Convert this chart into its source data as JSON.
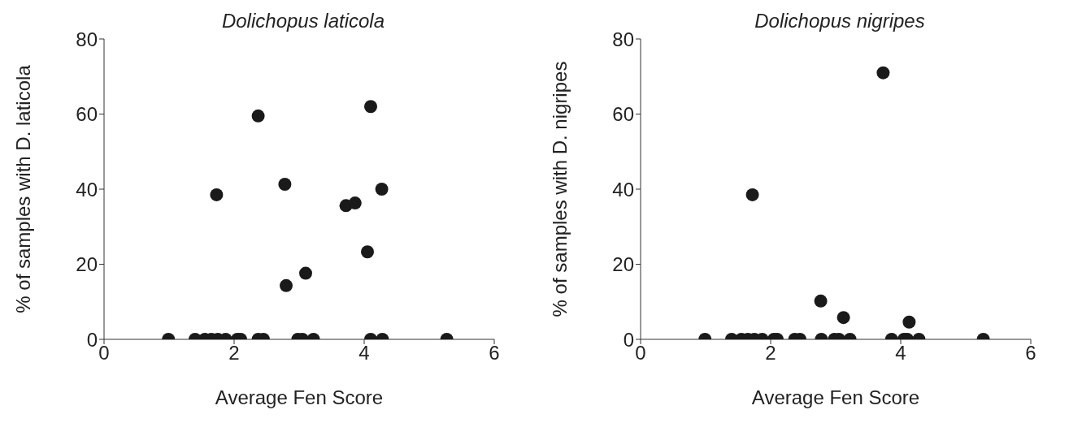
{
  "chart_data": [
    {
      "type": "scatter",
      "title": "Dolichopus laticola",
      "xlabel": "Average Fen Score",
      "ylabel": "% of samples with D. laticola",
      "xlim": [
        0,
        6
      ],
      "xticks": [
        0,
        2,
        4,
        6
      ],
      "ylim": [
        0,
        80
      ],
      "yticks": [
        0,
        20,
        40,
        60,
        80
      ],
      "grid": false,
      "legend": false,
      "marker": "circle",
      "x": [
        0.99,
        1.4,
        1.55,
        1.65,
        1.75,
        1.87,
        2.05,
        2.1,
        2.37,
        2.45,
        2.98,
        3.05,
        3.22,
        4.1,
        4.28,
        5.27,
        1.73,
        2.37,
        2.78,
        2.8,
        3.1,
        3.72,
        3.86,
        4.05,
        4.1,
        4.27
      ],
      "series": [
        {
          "color": "#1a1a1a",
          "values": [
            0,
            0,
            0,
            0,
            0,
            0,
            0,
            0,
            0,
            0,
            0,
            0,
            0,
            0,
            0,
            0,
            38.5,
            59.5,
            41.3,
            14.3,
            17.6,
            35.6,
            36.3,
            23.3,
            62,
            40
          ]
        }
      ]
    },
    {
      "type": "scatter",
      "title": "Dolichopus nigripes",
      "xlabel": "Average Fen Score",
      "ylabel": "% of samples with D. nigripes",
      "xlim": [
        0,
        6
      ],
      "xticks": [
        0,
        2,
        4,
        6
      ],
      "ylim": [
        0,
        80
      ],
      "yticks": [
        0,
        20,
        40,
        60,
        80
      ],
      "grid": false,
      "legend": false,
      "marker": "circle",
      "x": [
        0.99,
        1.4,
        1.55,
        1.65,
        1.75,
        1.87,
        2.05,
        2.1,
        2.37,
        2.45,
        2.78,
        2.98,
        3.05,
        3.22,
        3.86,
        4.05,
        4.1,
        4.28,
        5.27,
        1.72,
        2.77,
        3.12,
        3.73,
        4.13
      ],
      "series": [
        {
          "color": "#1a1a1a",
          "values": [
            0,
            0,
            0,
            0,
            0,
            0,
            0,
            0,
            0,
            0,
            0,
            0,
            0,
            0,
            0,
            0,
            0,
            0,
            0,
            38.5,
            10.2,
            5.8,
            71,
            4.6
          ]
        }
      ]
    }
  ]
}
